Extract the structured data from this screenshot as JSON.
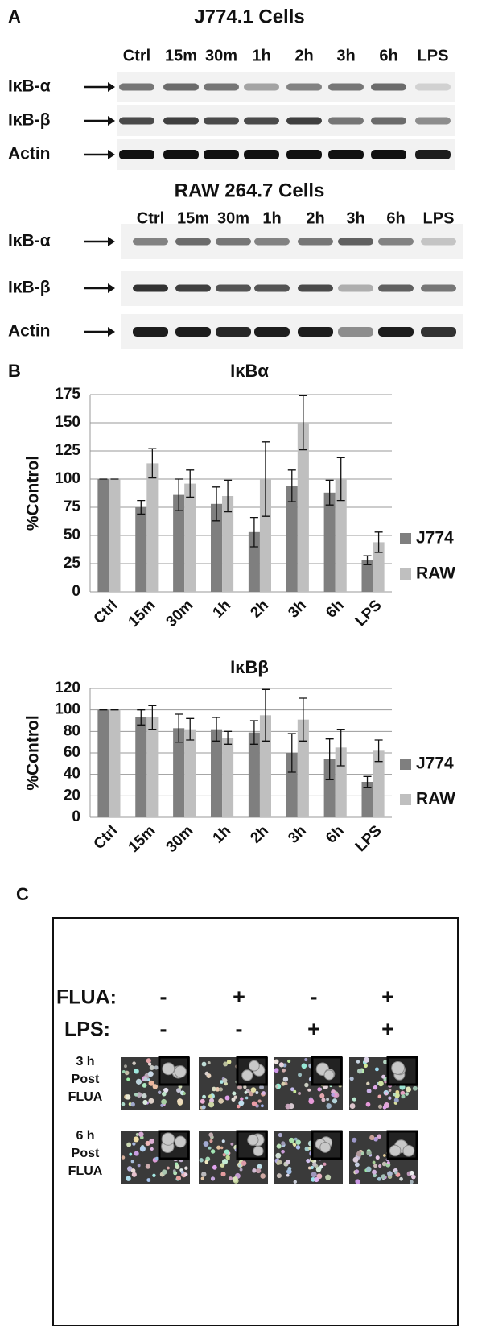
{
  "panel_labels": [
    "A",
    "B",
    "C"
  ],
  "panel_a": {
    "blots": [
      {
        "title": "J774.1 Cells",
        "lanes": [
          "Ctrl",
          "15m",
          "30m",
          "1h",
          "2h",
          "3h",
          "6h",
          "LPS"
        ],
        "rows": [
          "IκB-α",
          "IκB-β",
          "Actin"
        ]
      },
      {
        "title": "RAW 264.7 Cells",
        "lanes": [
          "Ctrl",
          "15m",
          "30m",
          "1h",
          "2h",
          "3h",
          "6h",
          "LPS"
        ],
        "rows": [
          "IκB-α",
          "IκB-β",
          "Actin"
        ]
      }
    ]
  },
  "chart_data": [
    {
      "type": "bar",
      "title": "IκBα",
      "y_label": "%Control",
      "categories": [
        "Ctrl",
        "15m",
        "30m",
        "1h",
        "2h",
        "3h",
        "6h",
        "LPS"
      ],
      "series": [
        {
          "name": "J774",
          "color": "#7f7f7f",
          "values": [
            100,
            75,
            86,
            78,
            53,
            94,
            88,
            28
          ],
          "errors": [
            0,
            6,
            14,
            15,
            13,
            14,
            11,
            4
          ]
        },
        {
          "name": "RAW",
          "color": "#bfbfbf",
          "values": [
            100,
            114,
            96,
            85,
            100,
            150,
            100,
            44
          ],
          "errors": [
            0,
            13,
            12,
            14,
            33,
            24,
            19,
            9
          ]
        }
      ],
      "ylim": [
        0,
        175
      ],
      "yticks": [
        0,
        25,
        50,
        75,
        100,
        125,
        150,
        175
      ],
      "grid": true,
      "legend": "right"
    },
    {
      "type": "bar",
      "title": "IκBβ",
      "y_label": "%Control",
      "categories": [
        "Ctrl",
        "15m",
        "30m",
        "1h",
        "2h",
        "3h",
        "6h",
        "LPS"
      ],
      "series": [
        {
          "name": "J774",
          "color": "#7f7f7f",
          "values": [
            100,
            93,
            83,
            82,
            79,
            60,
            54,
            33
          ],
          "errors": [
            0,
            7,
            13,
            11,
            11,
            18,
            19,
            5
          ]
        },
        {
          "name": "RAW",
          "color": "#bfbfbf",
          "values": [
            100,
            93,
            82,
            74,
            95,
            91,
            65,
            62
          ],
          "errors": [
            0,
            11,
            10,
            6,
            24,
            20,
            17,
            10
          ]
        }
      ],
      "ylim": [
        0,
        120
      ],
      "yticks": [
        0,
        20,
        40,
        60,
        80,
        100,
        120
      ],
      "grid": true,
      "legend": "right"
    }
  ],
  "panel_c": {
    "conditions": [
      {
        "label": "FLUA:",
        "signs": [
          "-",
          "+",
          "-",
          "+"
        ]
      },
      {
        "label": "LPS:",
        "signs": [
          "-",
          "-",
          "+",
          "+"
        ]
      }
    ],
    "rows": [
      [
        "3 h",
        "Post",
        "FLUA"
      ],
      [
        "6 h",
        "Post",
        "FLUA"
      ]
    ]
  }
}
